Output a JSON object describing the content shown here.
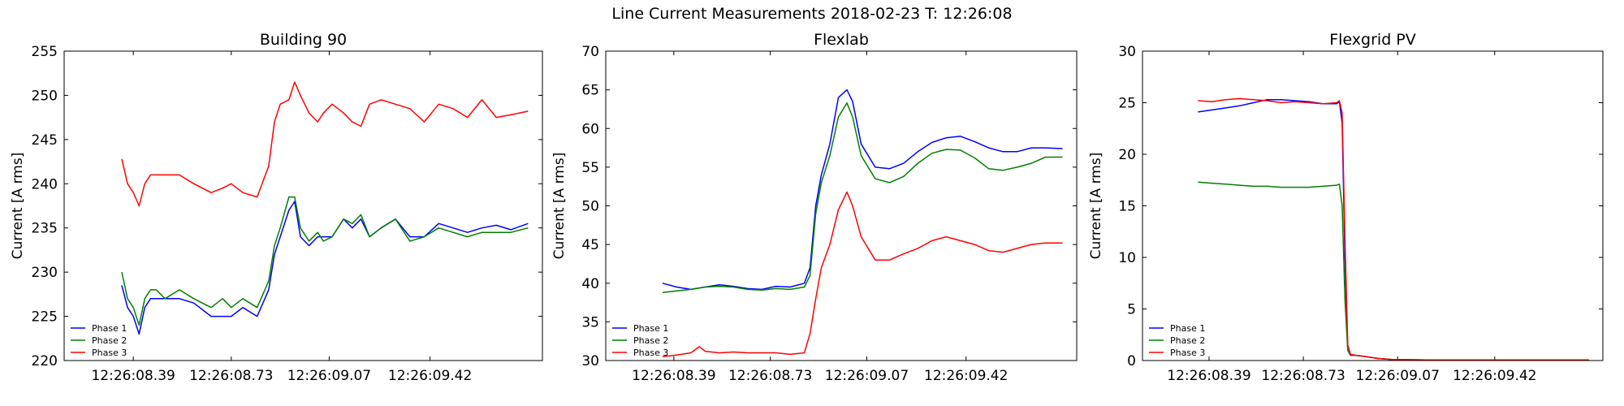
{
  "figure": {
    "title": "Line Current Measurements 2018-02-23 T: 12:26:08"
  },
  "colors": {
    "Phase 1": "#0000ff",
    "Phase 2": "#008000",
    "Phase 3": "#ff0000"
  },
  "chart_data": [
    {
      "type": "line",
      "title": "Building 90",
      "xlabel": "",
      "ylabel": "Current [A rms]",
      "xlim": [
        8.15,
        9.81
      ],
      "ylim": [
        220,
        255
      ],
      "yticks": [
        220,
        225,
        230,
        235,
        240,
        245,
        250,
        255
      ],
      "xticks": [
        8.39,
        8.73,
        9.07,
        9.42
      ],
      "xtick_labels": [
        "12:26:08.39",
        "12:26:08.73",
        "12:26:09.07",
        "12:26:09.42"
      ],
      "grid": false,
      "legend": "bottom-left",
      "series": [
        {
          "name": "Phase 1",
          "x": [
            8.35,
            8.37,
            8.39,
            8.41,
            8.43,
            8.45,
            8.47,
            8.5,
            8.55,
            8.6,
            8.66,
            8.7,
            8.73,
            8.77,
            8.82,
            8.86,
            8.88,
            8.9,
            8.93,
            8.95,
            8.97,
            9.0,
            9.03,
            9.05,
            9.08,
            9.12,
            9.15,
            9.18,
            9.21,
            9.25,
            9.3,
            9.35,
            9.4,
            9.45,
            9.5,
            9.55,
            9.6,
            9.65,
            9.7,
            9.76
          ],
          "values": [
            228.5,
            226,
            225,
            223,
            226,
            227,
            227,
            227,
            227,
            226.5,
            225,
            225,
            225,
            226,
            225,
            228,
            232,
            234,
            237,
            238,
            234,
            233,
            234,
            234,
            234,
            236,
            235,
            236,
            234,
            235,
            236,
            234,
            234,
            235.5,
            235,
            234.5,
            235,
            235.3,
            234.8,
            235.5
          ]
        },
        {
          "name": "Phase 2",
          "x": [
            8.35,
            8.37,
            8.39,
            8.41,
            8.43,
            8.45,
            8.47,
            8.5,
            8.55,
            8.6,
            8.66,
            8.7,
            8.73,
            8.77,
            8.82,
            8.86,
            8.88,
            8.9,
            8.93,
            8.95,
            8.97,
            9.0,
            9.03,
            9.05,
            9.08,
            9.12,
            9.15,
            9.18,
            9.21,
            9.25,
            9.3,
            9.35,
            9.4,
            9.45,
            9.5,
            9.55,
            9.6,
            9.65,
            9.7,
            9.76
          ],
          "values": [
            230,
            227,
            226,
            224,
            227,
            228,
            228,
            227,
            228,
            227,
            226,
            227,
            226,
            227,
            226,
            229,
            233,
            235,
            238.5,
            238.5,
            235,
            233.5,
            234.5,
            233.5,
            234,
            236,
            235.5,
            236.5,
            234,
            235,
            236,
            233.5,
            234,
            235,
            234.5,
            234,
            234.5,
            234.5,
            234.5,
            235
          ]
        },
        {
          "name": "Phase 3",
          "x": [
            8.35,
            8.37,
            8.39,
            8.41,
            8.43,
            8.45,
            8.47,
            8.5,
            8.55,
            8.6,
            8.66,
            8.7,
            8.73,
            8.77,
            8.82,
            8.86,
            8.88,
            8.9,
            8.93,
            8.95,
            8.97,
            9.0,
            9.03,
            9.05,
            9.08,
            9.12,
            9.15,
            9.18,
            9.21,
            9.25,
            9.3,
            9.35,
            9.4,
            9.45,
            9.5,
            9.55,
            9.6,
            9.65,
            9.7,
            9.76
          ],
          "values": [
            242.8,
            240,
            239,
            237.5,
            240,
            241,
            241,
            241,
            241,
            240,
            239,
            239.5,
            240,
            239,
            238.5,
            242,
            247,
            249,
            249.5,
            251.5,
            250,
            248,
            247,
            248,
            249,
            248,
            247,
            246.5,
            249,
            249.5,
            249,
            248.5,
            247,
            249,
            248.5,
            247.5,
            249.5,
            247.5,
            247.8,
            248.2
          ]
        }
      ]
    },
    {
      "type": "line",
      "title": "Flexlab",
      "xlabel": "",
      "ylabel": "Current [A rms]",
      "xlim": [
        8.15,
        9.81
      ],
      "ylim": [
        30,
        70
      ],
      "yticks": [
        30,
        35,
        40,
        45,
        50,
        55,
        60,
        65,
        70
      ],
      "xticks": [
        8.39,
        8.73,
        9.07,
        9.42
      ],
      "xtick_labels": [
        "12:26:08.39",
        "12:26:08.73",
        "12:26:09.07",
        "12:26:09.42"
      ],
      "grid": false,
      "legend": "bottom-left",
      "series": [
        {
          "name": "Phase 1",
          "x": [
            8.35,
            8.4,
            8.45,
            8.5,
            8.55,
            8.6,
            8.65,
            8.7,
            8.75,
            8.8,
            8.85,
            8.87,
            8.89,
            8.91,
            8.94,
            8.97,
            9.0,
            9.02,
            9.05,
            9.1,
            9.15,
            9.2,
            9.25,
            9.3,
            9.35,
            9.4,
            9.45,
            9.5,
            9.55,
            9.6,
            9.65,
            9.7,
            9.76
          ],
          "values": [
            40,
            39.5,
            39.2,
            39.5,
            39.8,
            39.6,
            39.3,
            39.2,
            39.6,
            39.5,
            40,
            42,
            50,
            54,
            58,
            64,
            65,
            63.5,
            58,
            55,
            54.8,
            55.5,
            57,
            58.2,
            58.8,
            59,
            58.3,
            57.5,
            57,
            57,
            57.5,
            57.5,
            57.4
          ]
        },
        {
          "name": "Phase 2",
          "x": [
            8.35,
            8.4,
            8.45,
            8.5,
            8.55,
            8.6,
            8.65,
            8.7,
            8.75,
            8.8,
            8.85,
            8.87,
            8.89,
            8.91,
            8.94,
            8.97,
            9.0,
            9.02,
            9.05,
            9.1,
            9.15,
            9.2,
            9.25,
            9.3,
            9.35,
            9.4,
            9.45,
            9.5,
            9.55,
            9.6,
            9.65,
            9.7,
            9.76
          ],
          "values": [
            38.8,
            39,
            39.2,
            39.5,
            39.6,
            39.5,
            39.2,
            39.1,
            39.3,
            39.2,
            39.5,
            41,
            49,
            53,
            56.5,
            61.5,
            63.3,
            61.5,
            56.5,
            53.5,
            53,
            53.8,
            55.5,
            56.8,
            57.3,
            57.2,
            56.2,
            54.8,
            54.6,
            55,
            55.5,
            56.3,
            56.3
          ]
        },
        {
          "name": "Phase 3",
          "x": [
            8.35,
            8.4,
            8.45,
            8.48,
            8.5,
            8.55,
            8.6,
            8.65,
            8.7,
            8.75,
            8.8,
            8.85,
            8.87,
            8.89,
            8.91,
            8.94,
            8.97,
            9.0,
            9.02,
            9.05,
            9.1,
            9.15,
            9.2,
            9.25,
            9.3,
            9.35,
            9.4,
            9.45,
            9.5,
            9.55,
            9.6,
            9.65,
            9.7,
            9.76
          ],
          "values": [
            30.5,
            30.7,
            31,
            31.8,
            31.2,
            31,
            31.1,
            31,
            31,
            31,
            30.8,
            31,
            33.5,
            38,
            42,
            45,
            49.5,
            51.8,
            50,
            46,
            43,
            43,
            43.8,
            44.5,
            45.5,
            46,
            45.5,
            45,
            44.2,
            44,
            44.5,
            45,
            45.2,
            45.2
          ]
        }
      ]
    },
    {
      "type": "line",
      "title": "Flexgrid PV",
      "xlabel": "",
      "ylabel": "Current [A rms]",
      "xlim": [
        8.15,
        9.81
      ],
      "ylim": [
        0,
        30
      ],
      "yticks": [
        0,
        5,
        10,
        15,
        20,
        25,
        30
      ],
      "xticks": [
        8.39,
        8.73,
        9.07,
        9.42
      ],
      "xtick_labels": [
        "12:26:08.39",
        "12:26:08.73",
        "12:26:09.07",
        "12:26:09.42"
      ],
      "grid": false,
      "legend": "bottom-left",
      "series": [
        {
          "name": "Phase 1",
          "x": [
            8.35,
            8.4,
            8.45,
            8.5,
            8.55,
            8.6,
            8.65,
            8.7,
            8.75,
            8.8,
            8.85,
            8.86,
            8.87,
            8.88,
            8.89,
            8.9,
            8.92,
            8.95,
            9.0,
            9.05,
            9.2,
            9.4,
            9.6,
            9.76
          ],
          "values": [
            24.1,
            24.3,
            24.5,
            24.7,
            25.0,
            25.3,
            25.3,
            25.2,
            25.1,
            24.9,
            24.9,
            25.1,
            23,
            10,
            1,
            0.5,
            0.5,
            0.4,
            0.2,
            0.1,
            0.05,
            0.05,
            0.05,
            0.05
          ]
        },
        {
          "name": "Phase 2",
          "x": [
            8.35,
            8.4,
            8.45,
            8.5,
            8.55,
            8.6,
            8.65,
            8.7,
            8.75,
            8.8,
            8.85,
            8.86,
            8.87,
            8.88,
            8.89,
            8.9,
            8.92,
            8.95,
            9.0,
            9.05,
            9.2,
            9.4,
            9.6,
            9.76
          ],
          "values": [
            17.3,
            17.2,
            17.1,
            17.0,
            16.9,
            16.9,
            16.8,
            16.8,
            16.8,
            16.9,
            17.0,
            17.1,
            15,
            6,
            1,
            0.5,
            0.5,
            0.4,
            0.2,
            0.1,
            0.05,
            0.05,
            0.05,
            0.05
          ]
        },
        {
          "name": "Phase 3",
          "x": [
            8.35,
            8.4,
            8.45,
            8.5,
            8.55,
            8.6,
            8.65,
            8.7,
            8.75,
            8.8,
            8.85,
            8.86,
            8.87,
            8.88,
            8.89,
            8.9,
            8.92,
            8.95,
            9.0,
            9.05,
            9.2,
            9.4,
            9.6,
            9.76
          ],
          "values": [
            25.2,
            25.1,
            25.3,
            25.4,
            25.3,
            25.2,
            25.0,
            25.1,
            25.0,
            24.9,
            25.0,
            25.2,
            24,
            12,
            1.5,
            0.6,
            0.5,
            0.4,
            0.2,
            0.1,
            0.05,
            0.05,
            0.05,
            0.05
          ]
        }
      ]
    }
  ]
}
